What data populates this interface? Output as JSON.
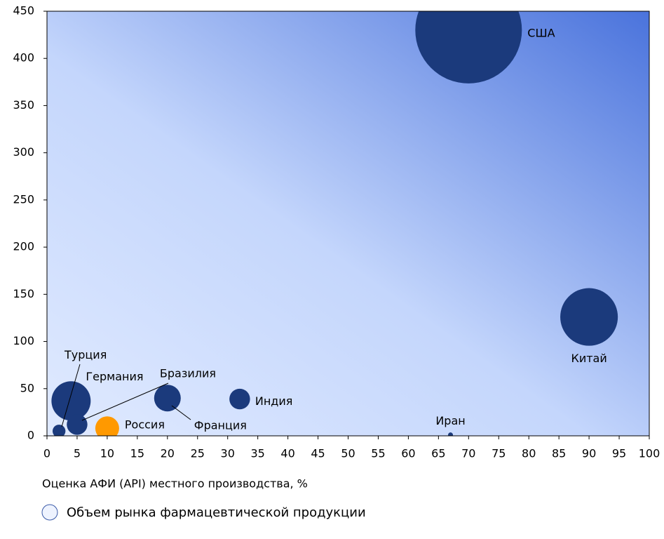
{
  "chart_data": {
    "type": "bubble",
    "x_label": "Оценка АФИ (API) местного производства, %",
    "size_legend": "Объем рынка фармацевтической продукции",
    "labels": [
      "США",
      "Китай",
      "Индия",
      "Франция",
      "Германия",
      "Бразилия",
      "Турция",
      "Россия",
      "Иран"
    ],
    "x": [
      70,
      90,
      32,
      20,
      4,
      5,
      2,
      10,
      67
    ],
    "values": [
      430,
      126,
      39,
      40,
      37,
      12,
      5,
      8,
      1
    ],
    "sizes": [
      480,
      140,
      18,
      30,
      65,
      18,
      7,
      24,
      1
    ],
    "colors": [
      "#1b3a7c",
      "#1b3a7c",
      "#1b3a7c",
      "#1b3a7c",
      "#1b3a7c",
      "#1b3a7c",
      "#1b3a7c",
      "#ff9900",
      "#1b3a7c"
    ],
    "xlim": [
      0,
      100
    ],
    "xticks": [
      0,
      5,
      10,
      15,
      20,
      25,
      30,
      35,
      40,
      45,
      50,
      55,
      60,
      65,
      70,
      75,
      80,
      85,
      90,
      95,
      100
    ],
    "ylim": [
      0,
      450
    ],
    "yticks": [
      0,
      50,
      100,
      150,
      200,
      250,
      300,
      350,
      400,
      450
    ]
  }
}
